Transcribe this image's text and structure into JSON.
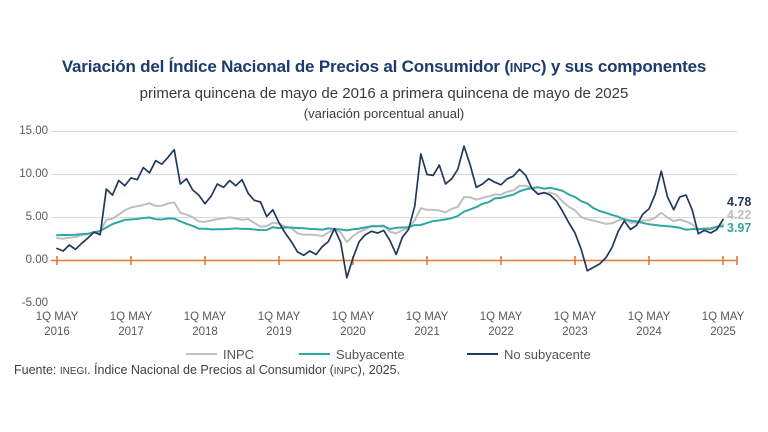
{
  "header": {
    "title_pre": "Variación del Índice Nacional de Precios al Consumidor (",
    "title_acronym": "INPC",
    "title_post": ") y sus componentes",
    "subtitle": "primera quincena de mayo de 2016 a primera quincena de mayo de 2025",
    "note": "(variación porcentual anual)"
  },
  "footer": {
    "source_pre": "Fuente: ",
    "source_acr1": "INEGI",
    "source_mid": ". Índice Nacional de Precios al Consumidor (",
    "source_acr2": "INPC",
    "source_post": "), 2025."
  },
  "colors": {
    "title": "#1c3c6e",
    "zero_axis": "#e0793c",
    "grid": "#d9d9d9",
    "axis_text": "#595959",
    "inpc": "#bfbfbf",
    "subyacente": "#2fa8a3",
    "no_subyacente": "#22395c"
  },
  "chart_data": {
    "type": "line",
    "title": "Variación del Índice Nacional de Precios al Consumidor (INPC) y sus componentes",
    "subtitle": "primera quincena de mayo de 2016 a primera quincena de mayo de 2025",
    "ylabel": "variación porcentual anual",
    "ylim": [
      -5,
      15
    ],
    "y_ticks": [
      -5,
      0,
      5,
      10,
      15
    ],
    "y_tick_labels": [
      "-5.00",
      "0.00",
      "5.00",
      "10.00",
      "15.00"
    ],
    "y_gridlines": [
      5,
      10,
      15
    ],
    "zero_line": 0,
    "x_tick_prefix": "1Q MAY",
    "x_tick_years": [
      "2016",
      "2017",
      "2018",
      "2019",
      "2020",
      "2021",
      "2022",
      "2023",
      "2024",
      "2025"
    ],
    "x_range_note": "monthly samples from 1Q May 2016 to 1Q May 2025",
    "legend_position": "bottom",
    "series": [
      {
        "name": "INPC",
        "color": "#bfbfbf",
        "stroke_width": 2,
        "end_value": 4.22,
        "end_label": "4.22",
        "values": [
          2.6,
          2.54,
          2.65,
          2.73,
          2.97,
          3.06,
          3.31,
          3.36,
          4.72,
          4.86,
          5.35,
          5.82,
          6.16,
          6.31,
          6.44,
          6.66,
          6.35,
          6.37,
          6.63,
          6.77,
          5.55,
          5.34,
          5.04,
          4.55,
          4.51,
          4.65,
          4.81,
          4.9,
          5.02,
          4.9,
          4.72,
          4.83,
          4.37,
          3.94,
          4.0,
          4.41,
          4.28,
          3.95,
          3.78,
          3.16,
          3.0,
          3.02,
          2.97,
          2.83,
          3.24,
          3.7,
          3.25,
          2.15,
          2.84,
          3.33,
          3.62,
          4.05,
          4.01,
          4.09,
          3.33,
          3.15,
          3.54,
          3.76,
          4.67,
          6.08,
          5.89,
          5.88,
          5.81,
          5.59,
          6.0,
          6.24,
          7.37,
          7.36,
          7.07,
          7.28,
          7.45,
          7.68,
          7.65,
          7.99,
          8.15,
          8.7,
          8.7,
          8.41,
          7.8,
          7.82,
          7.91,
          7.62,
          6.85,
          6.25,
          5.84,
          5.06,
          4.79,
          4.64,
          4.45,
          4.26,
          4.32,
          4.66,
          4.88,
          4.4,
          4.42,
          4.65,
          4.69,
          4.98,
          5.57,
          4.99,
          4.58,
          4.76,
          4.55,
          4.21,
          3.59,
          3.77,
          3.8,
          3.93,
          4.22
        ]
      },
      {
        "name": "Subyacente",
        "color": "#2fa8a3",
        "stroke_width": 2,
        "end_value": 3.97,
        "end_label": "3.97",
        "values": [
          2.93,
          2.97,
          2.97,
          3.0,
          3.07,
          3.1,
          3.29,
          3.44,
          3.84,
          4.24,
          4.48,
          4.72,
          4.78,
          4.83,
          4.94,
          5.0,
          4.8,
          4.77,
          4.9,
          4.87,
          4.56,
          4.27,
          4.02,
          3.71,
          3.69,
          3.62,
          3.63,
          3.63,
          3.67,
          3.73,
          3.68,
          3.68,
          3.6,
          3.54,
          3.55,
          3.87,
          3.77,
          3.85,
          3.82,
          3.78,
          3.75,
          3.68,
          3.65,
          3.59,
          3.73,
          3.66,
          3.6,
          3.5,
          3.64,
          3.71,
          3.85,
          3.97,
          3.99,
          3.98,
          3.66,
          3.8,
          3.84,
          3.87,
          4.12,
          4.13,
          4.37,
          4.58,
          4.66,
          4.78,
          4.92,
          5.19,
          5.67,
          5.94,
          6.21,
          6.59,
          6.78,
          7.22,
          7.28,
          7.49,
          7.65,
          8.05,
          8.28,
          8.42,
          8.51,
          8.35,
          8.45,
          8.29,
          8.09,
          7.67,
          7.39,
          6.89,
          6.64,
          6.08,
          5.76,
          5.55,
          5.3,
          5.09,
          4.76,
          4.64,
          4.55,
          4.37,
          4.21,
          4.13,
          4.05,
          4.0,
          3.91,
          3.8,
          3.58,
          3.65,
          3.66,
          3.65,
          3.64,
          3.93,
          3.97
        ]
      },
      {
        "name": "No subyacente",
        "color": "#22395c",
        "stroke_width": 1.7,
        "end_value": 4.78,
        "end_label": "4.78",
        "values": [
          1.4,
          1.1,
          1.8,
          1.3,
          2.0,
          2.6,
          3.3,
          3.0,
          8.3,
          7.6,
          9.3,
          8.7,
          9.6,
          9.4,
          10.8,
          10.2,
          11.6,
          11.2,
          12.0,
          12.9,
          8.9,
          9.5,
          8.2,
          7.6,
          6.6,
          7.5,
          8.9,
          8.5,
          9.3,
          8.7,
          9.4,
          7.8,
          7.0,
          6.8,
          5.1,
          5.9,
          4.4,
          3.2,
          2.2,
          1.0,
          0.6,
          1.1,
          0.7,
          1.6,
          2.2,
          3.7,
          2.1,
          -2.0,
          0.3,
          2.2,
          3.0,
          3.4,
          3.2,
          3.5,
          2.3,
          0.7,
          2.7,
          3.6,
          6.3,
          12.4,
          10.0,
          9.9,
          11.1,
          8.9,
          9.5,
          10.6,
          13.3,
          11.1,
          8.5,
          8.9,
          9.5,
          9.1,
          8.8,
          9.5,
          9.8,
          10.6,
          9.9,
          8.4,
          7.7,
          7.9,
          7.6,
          6.9,
          5.7,
          4.4,
          3.2,
          1.3,
          -1.2,
          -0.8,
          -0.4,
          0.3,
          1.5,
          3.4,
          4.6,
          3.6,
          4.1,
          5.4,
          6.0,
          7.7,
          10.4,
          7.4,
          5.9,
          7.4,
          7.6,
          5.9,
          3.1,
          3.5,
          3.2,
          3.6,
          4.78
        ]
      }
    ]
  }
}
